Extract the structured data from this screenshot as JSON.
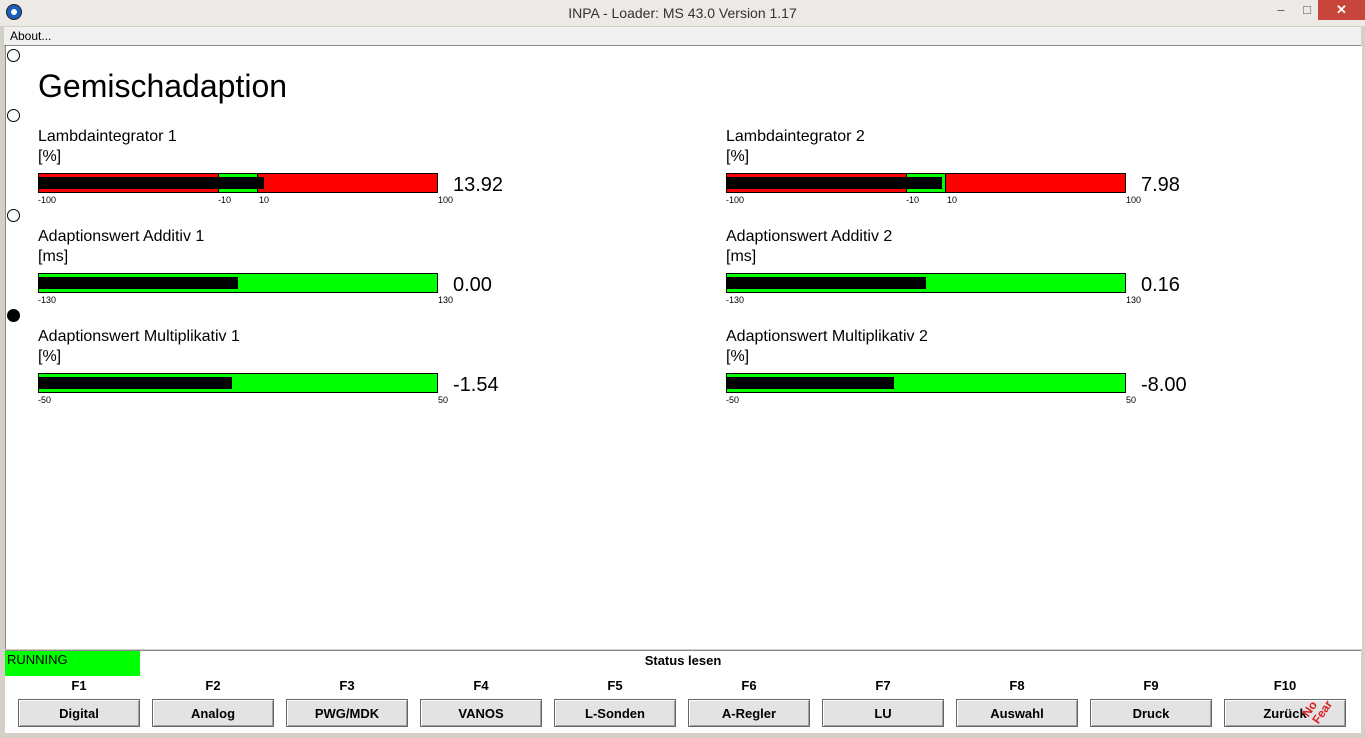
{
  "window": {
    "title": "INPA - Loader:  MS 43.0 Version 1.17",
    "min_glyph": "–",
    "max_glyph": "□",
    "close_glyph": "✕"
  },
  "menu": {
    "about": "About..."
  },
  "page": {
    "heading": "Gemischadaption"
  },
  "gauges": [
    {
      "label": "Lambdaintegrator 1",
      "unit": "[%]",
      "value": "13.92",
      "min": "-100",
      "max": "100",
      "zone_low": "-10",
      "zone_high": "10",
      "level": 0.565
    },
    {
      "label": "Lambdaintegrator 2",
      "unit": "[%]",
      "value": "7.98",
      "min": "-100",
      "max": "100",
      "zone_low": "-10",
      "zone_high": "10",
      "level": 0.54
    },
    {
      "label": "Adaptionswert Additiv 1",
      "unit": "[ms]",
      "value": "0.00",
      "min": "-130",
      "max": "130",
      "level": 0.5
    },
    {
      "label": "Adaptionswert Additiv 2",
      "unit": "[ms]",
      "value": "0.16",
      "min": "-130",
      "max": "130",
      "level": 0.5
    },
    {
      "label": "Adaptionswert Multiplikativ 1",
      "unit": "[%]",
      "value": "-1.54",
      "min": "-50",
      "max": "50",
      "level": 0.485
    },
    {
      "label": "Adaptionswert Multiplikativ 2",
      "unit": "[%]",
      "value": "-8.00",
      "min": "-50",
      "max": "50",
      "level": 0.42
    }
  ],
  "colors": {
    "ok": "#00ff00",
    "warn": "#ff0000",
    "bar": "#000000"
  },
  "status": {
    "running": "RUNNING",
    "label": "Status lesen"
  },
  "function_keys": [
    {
      "key": "F1",
      "label": "Digital"
    },
    {
      "key": "F2",
      "label": "Analog"
    },
    {
      "key": "F3",
      "label": "PWG/MDK"
    },
    {
      "key": "F4",
      "label": "VANOS"
    },
    {
      "key": "F5",
      "label": "L-Sonden"
    },
    {
      "key": "F6",
      "label": "A-Regler"
    },
    {
      "key": "F7",
      "label": "LU"
    },
    {
      "key": "F8",
      "label": "Auswahl"
    },
    {
      "key": "F9",
      "label": "Druck"
    },
    {
      "key": "F10",
      "label": "Zurück"
    }
  ],
  "watermark": {
    "line1": "No",
    "line2": "Fear"
  }
}
